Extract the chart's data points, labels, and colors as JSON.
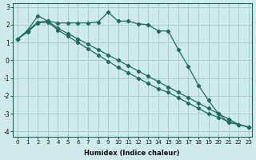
{
  "xlabel": "Humidex (Indice chaleur)",
  "ylabel": "",
  "bg_color": "#ceeaea",
  "grid_color": "#aacccc",
  "line_color": "#1e6b5e",
  "xlim_min": -0.5,
  "xlim_max": 23.3,
  "ylim_min": -4.3,
  "ylim_max": 3.2,
  "yticks": [
    -4,
    -3,
    -2,
    -1,
    0,
    1,
    2,
    3
  ],
  "xticks": [
    0,
    1,
    2,
    3,
    4,
    5,
    6,
    7,
    8,
    9,
    10,
    11,
    12,
    13,
    14,
    15,
    16,
    17,
    18,
    19,
    20,
    21,
    22,
    23
  ],
  "series": [
    [
      1.2,
      1.7,
      2.5,
      2.2,
      2.1,
      2.1,
      2.1,
      2.1,
      2.15,
      2.7,
      2.2,
      2.2,
      2.05,
      2.0,
      1.65,
      1.65,
      0.6,
      -0.35,
      -1.4,
      -2.25,
      -3.0,
      -3.5,
      -3.6,
      -3.75
    ],
    [
      1.2,
      1.65,
      2.15,
      2.2,
      1.8,
      1.5,
      1.2,
      0.9,
      0.6,
      0.3,
      0.0,
      -0.3,
      -0.6,
      -0.9,
      -1.2,
      -1.5,
      -1.8,
      -2.1,
      -2.4,
      -2.7,
      -3.0,
      -3.3,
      -3.6,
      -3.75
    ],
    [
      1.2,
      1.6,
      2.1,
      2.15,
      1.7,
      1.35,
      1.0,
      0.65,
      0.3,
      -0.05,
      -0.4,
      -0.7,
      -1.0,
      -1.3,
      -1.6,
      -1.8,
      -2.1,
      -2.4,
      -2.7,
      -3.0,
      -3.2,
      -3.45,
      -3.6,
      -3.75
    ]
  ]
}
